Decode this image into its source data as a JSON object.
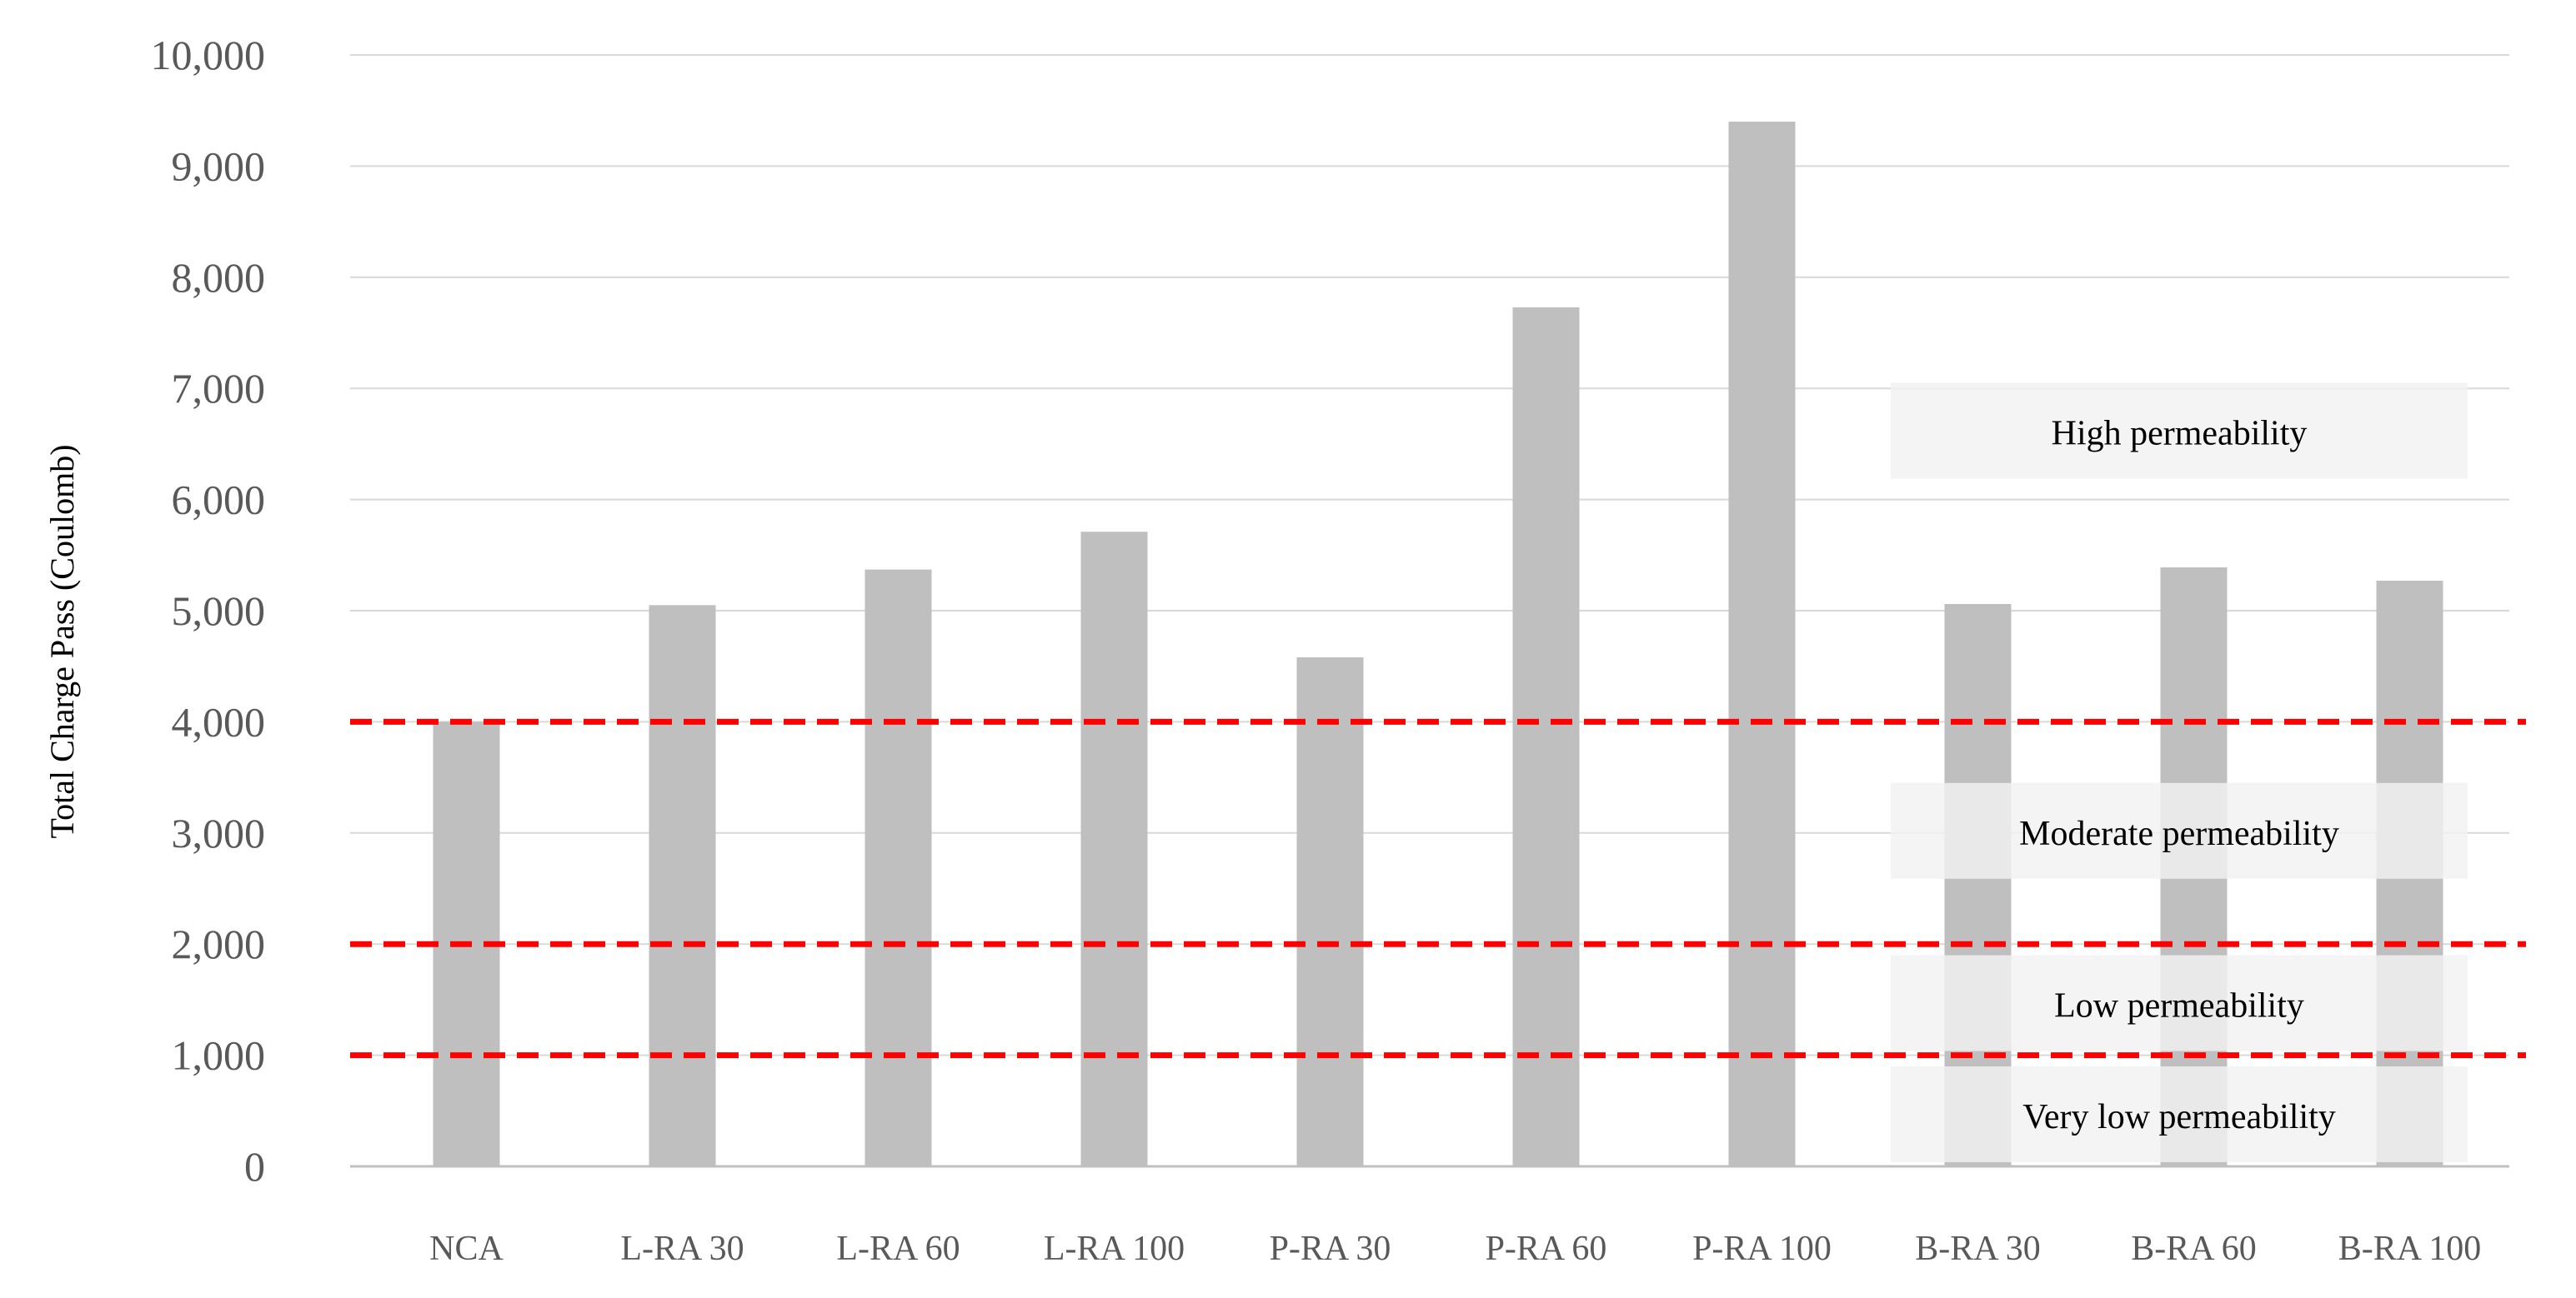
{
  "chart_data": {
    "type": "bar",
    "ylabel": "Total Charge Pass (Coulomb)",
    "xlabel": "",
    "ylim": [
      0,
      10000
    ],
    "yticks": [
      0,
      1000,
      2000,
      3000,
      4000,
      5000,
      6000,
      7000,
      8000,
      9000,
      10000
    ],
    "ytick_labels": [
      "0",
      "1,000",
      "2,000",
      "3,000",
      "4,000",
      "5,000",
      "6,000",
      "7,000",
      "8,000",
      "9,000",
      "10,000"
    ],
    "grid": true,
    "categories": [
      "NCA",
      "L-RA 30",
      "L-RA 60",
      "L-RA 100",
      "P-RA 30",
      "P-RA 60",
      "P-RA 100",
      "B-RA 30",
      "B-RA 60",
      "B-RA 100"
    ],
    "values": [
      4000,
      5050,
      5370,
      5710,
      4580,
      7730,
      9400,
      5060,
      5390,
      5270
    ],
    "thresholds": [
      4000,
      2000,
      1000
    ],
    "zones": [
      {
        "label": "High permeability",
        "y": 6600
      },
      {
        "label": "Moderate permeability",
        "y": 3000
      },
      {
        "label": "Low permeability",
        "y": 1450
      },
      {
        "label": "Very low permeability",
        "y": 450
      }
    ],
    "colors": {
      "bar": "#bfbfbf",
      "threshold": "#ff0000",
      "grid": "#d9d9d9",
      "zone_box": "#f2f2f2"
    }
  }
}
